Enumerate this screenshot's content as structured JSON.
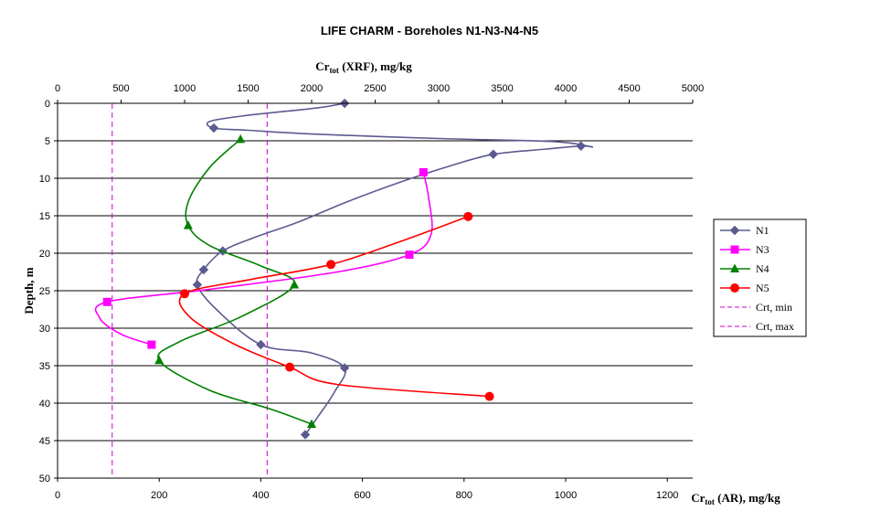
{
  "chart_data": {
    "type": "line",
    "title": "LIFE CHARM - Boreholes N1-N3-N4-N5",
    "top_axis": {
      "label_main": "Cr",
      "label_sub": "tot",
      "label_rest": " (XRF), mg/kg",
      "range": [
        0,
        5000
      ],
      "ticks": [
        0,
        500,
        1000,
        1500,
        2000,
        2500,
        3000,
        3500,
        4000,
        4500,
        5000
      ]
    },
    "bottom_axis": {
      "label_main": "Cr",
      "label_sub": "tot",
      "label_rest": " (AR), mg/kg",
      "range": [
        0,
        1250
      ],
      "ticks": [
        0,
        200,
        400,
        600,
        800,
        1000,
        1200
      ]
    },
    "y_axis": {
      "label": "Depth, m",
      "range": [
        0,
        50
      ],
      "ticks": [
        0,
        5,
        10,
        15,
        20,
        25,
        30,
        35,
        40,
        45,
        50
      ],
      "reversed": true
    },
    "grid": "horizontal",
    "legend_position": "right",
    "series": [
      {
        "name": "N1",
        "axis": "top",
        "color": "#5b5b8f",
        "marker": "diamond",
        "points": [
          [
            2260,
            0
          ],
          [
            1230,
            3.3
          ],
          [
            3430,
            6.8
          ],
          [
            4120,
            5.7
          ],
          [
            1300,
            19.7
          ],
          [
            1150,
            22.2
          ],
          [
            1100,
            24.2
          ],
          [
            1600,
            32.2
          ],
          [
            2260,
            35.3
          ],
          [
            1950,
            44.2
          ]
        ],
        "curve": [
          [
            2260,
            0
          ],
          [
            2050,
            0.6
          ],
          [
            1500,
            1.6
          ],
          [
            1200,
            2.4
          ],
          [
            1230,
            3.3
          ],
          [
            1500,
            3.6
          ],
          [
            2000,
            4.1
          ],
          [
            3000,
            4.7
          ],
          [
            3900,
            5.1
          ],
          [
            4200,
            5.8
          ],
          [
            4120,
            5.7
          ],
          [
            3850,
            6.1
          ],
          [
            3430,
            6.8
          ],
          [
            3100,
            8.3
          ],
          [
            2700,
            10.5
          ],
          [
            2300,
            13
          ],
          [
            1900,
            15.8
          ],
          [
            1550,
            17.9
          ],
          [
            1300,
            19.7
          ],
          [
            1150,
            22.2
          ],
          [
            1100,
            24.2
          ],
          [
            1250,
            27.5
          ],
          [
            1600,
            32.2
          ],
          [
            2000,
            33.3
          ],
          [
            2260,
            35.3
          ],
          [
            2180,
            38.5
          ],
          [
            2050,
            41.8
          ],
          [
            1950,
            44.2
          ]
        ]
      },
      {
        "name": "N3",
        "axis": "top",
        "color": "#ff00ff",
        "marker": "square",
        "points": [
          [
            2880,
            9.2
          ],
          [
            2770,
            20.2
          ],
          [
            390,
            26.5
          ],
          [
            740,
            32.2
          ]
        ],
        "curve": [
          [
            2880,
            9.2
          ],
          [
            2920,
            12.5
          ],
          [
            2940,
            17.5
          ],
          [
            2770,
            20.2
          ],
          [
            2200,
            22.5
          ],
          [
            1200,
            24.8
          ],
          [
            390,
            26.5
          ],
          [
            330,
            28.6
          ],
          [
            500,
            30.8
          ],
          [
            740,
            32.2
          ]
        ]
      },
      {
        "name": "N4",
        "axis": "bottom",
        "color": "#008000",
        "marker": "triangle",
        "points": [
          [
            360,
            4.8
          ],
          [
            257,
            16.3
          ],
          [
            466,
            24.2
          ],
          [
            200,
            34.3
          ],
          [
            500,
            42.8
          ]
        ],
        "curve": [
          [
            360,
            4.8
          ],
          [
            300,
            8.5
          ],
          [
            258,
            13
          ],
          [
            257,
            16.3
          ],
          [
            300,
            19
          ],
          [
            400,
            21.7
          ],
          [
            466,
            24.2
          ],
          [
            360,
            28.5
          ],
          [
            240,
            31.8
          ],
          [
            200,
            34.3
          ],
          [
            300,
            38.3
          ],
          [
            420,
            40.8
          ],
          [
            500,
            42.8
          ]
        ]
      },
      {
        "name": "N5",
        "axis": "bottom",
        "color": "#ff0000",
        "marker": "circle",
        "points": [
          [
            808,
            15.1
          ],
          [
            538,
            21.5
          ],
          [
            250,
            25.4
          ],
          [
            457,
            35.2
          ],
          [
            850,
            39.1
          ]
        ],
        "curve": [
          [
            808,
            15.1
          ],
          [
            680,
            18.3
          ],
          [
            538,
            21.5
          ],
          [
            380,
            23.5
          ],
          [
            250,
            25.4
          ],
          [
            260,
            28.5
          ],
          [
            350,
            32.2
          ],
          [
            457,
            35.2
          ],
          [
            550,
            37.5
          ],
          [
            850,
            39.1
          ]
        ]
      }
    ],
    "reference_lines": [
      {
        "name": "Crt, min",
        "axis": "top",
        "x": 430,
        "color": "#cc00cc"
      },
      {
        "name": "Crt, max",
        "axis": "top",
        "x": 1650,
        "color": "#cc00cc"
      }
    ]
  }
}
